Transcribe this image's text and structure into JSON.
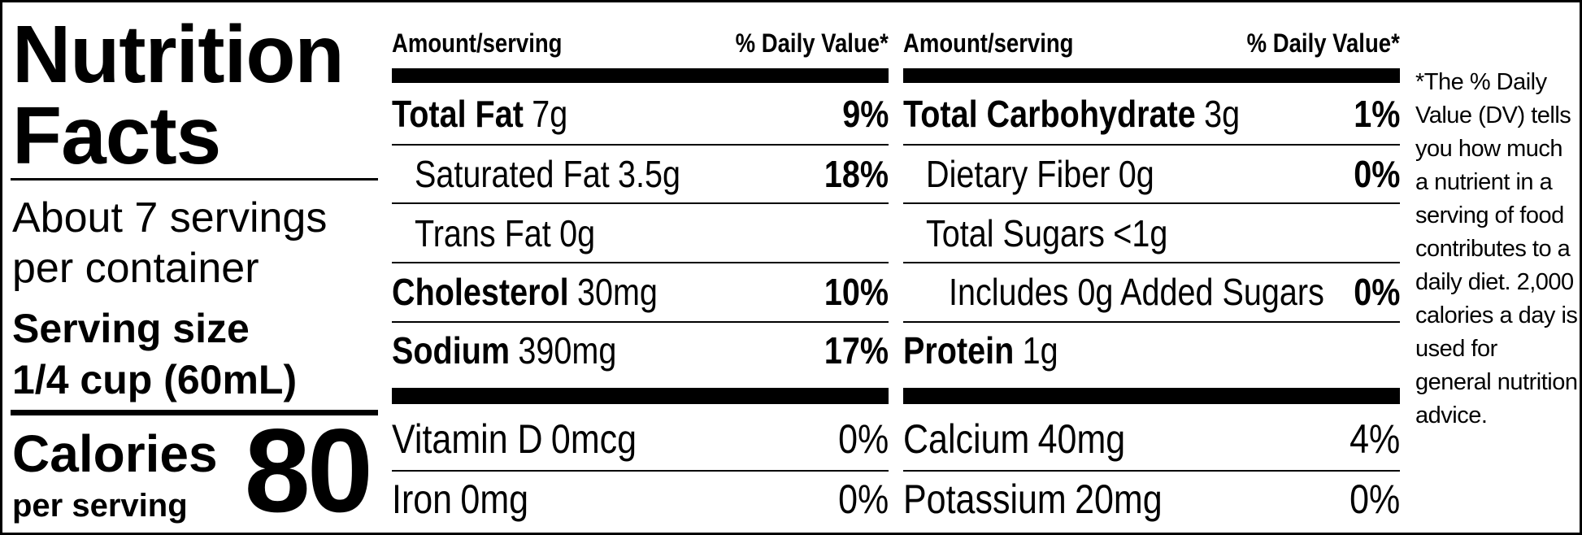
{
  "title": "Nutrition Facts",
  "servings": "About 7 servings per container",
  "serving_size": {
    "label": "Serving size",
    "value": "1/4 cup (60mL)"
  },
  "calories": {
    "label": "Calories",
    "sublabel": "per serving",
    "value": 80
  },
  "headers": [
    "Amount/serving",
    "% Daily Value*",
    "Amount/serving",
    "% Daily Value*"
  ],
  "nutrients": [
    [
      {
        "name": "Total Fat",
        "amount": "7g",
        "dv": "9%"
      },
      {
        "name": "Saturated Fat",
        "amount": "3.5g",
        "dv": "18%"
      },
      {
        "name": "Trans Fat",
        "amount": "0g"
      },
      {
        "name": "Cholesterol",
        "amount": "30mg",
        "dv": "10%"
      },
      {
        "name": "Sodium",
        "amount": "390mg",
        "dv": "17%"
      }
    ],
    [
      {
        "name": "Total Carbohydrate",
        "amount": "3g",
        "dv": "1%"
      },
      {
        "name": "Dietary Fiber",
        "amount": "0g",
        "dv": "0%"
      },
      {
        "name": "Total Sugars",
        "amount": "<1g"
      },
      {
        "name": "Includes 0g Added Sugars",
        "dv": "0%"
      },
      {
        "name": "Protein",
        "amount": "1g"
      }
    ]
  ],
  "vitamins": [
    [
      {
        "name": "Vitamin D",
        "amount": "0mcg",
        "dv": "0%"
      },
      {
        "name": "Iron",
        "amount": "0mg",
        "dv": "0%"
      }
    ],
    [
      {
        "name": "Calcium",
        "amount": "40mg",
        "dv": "4%"
      },
      {
        "name": "Potassium",
        "amount": "20mg",
        "dv": "0%"
      }
    ]
  ],
  "footnote": "*The % Daily Value (DV) tells you how much a nutrient in a serving of food contributes to a daily diet. 2,000 calories a day is used for general nutrition advice."
}
